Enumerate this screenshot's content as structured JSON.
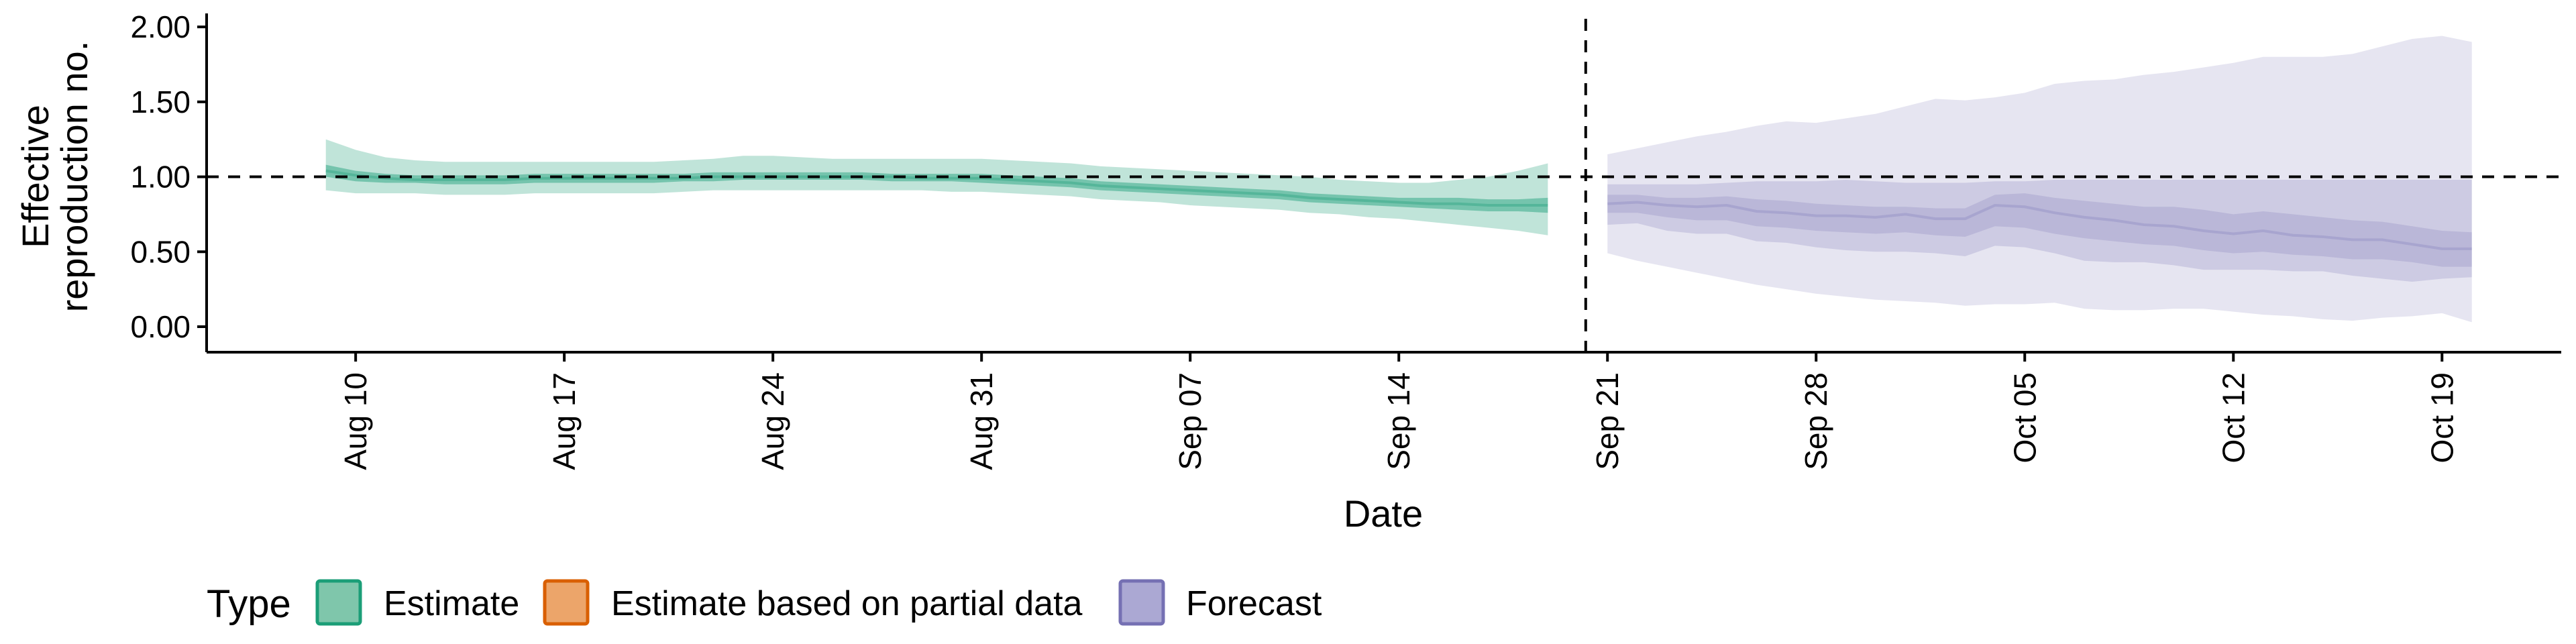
{
  "chart_data": {
    "type": "area",
    "title": "",
    "xlabel": "Date",
    "ylabel_lines": [
      "Effective",
      "reproduction no."
    ],
    "ylim": [
      0,
      2
    ],
    "y_ticks": [
      {
        "value": 0,
        "label": "0.00"
      },
      {
        "value": 0.5,
        "label": "0.50"
      },
      {
        "value": 1,
        "label": "1.00"
      },
      {
        "value": 1.5,
        "label": "1.50"
      },
      {
        "value": 2,
        "label": "2.00"
      }
    ],
    "x_ticks": [
      {
        "date": "2020-08-10",
        "label": "Aug 10"
      },
      {
        "date": "2020-08-17",
        "label": "Aug 17"
      },
      {
        "date": "2020-08-24",
        "label": "Aug 24"
      },
      {
        "date": "2020-08-31",
        "label": "Aug 31"
      },
      {
        "date": "2020-09-07",
        "label": "Sep 07"
      },
      {
        "date": "2020-09-14",
        "label": "Sep 14"
      },
      {
        "date": "2020-09-21",
        "label": "Sep 21"
      },
      {
        "date": "2020-09-28",
        "label": "Sep 28"
      },
      {
        "date": "2020-10-05",
        "label": "Oct 05"
      },
      {
        "date": "2020-10-12",
        "label": "Oct 12"
      },
      {
        "date": "2020-10-19",
        "label": "Oct 19"
      }
    ],
    "xlim": [
      "2020-08-05",
      "2020-10-23"
    ],
    "reference_line_y": 1.0,
    "forecast_divider_date": "2020-09-20",
    "grid": false,
    "legend": {
      "title": "Type",
      "position": "bottom-left",
      "items": [
        {
          "label": "Estimate",
          "fill": "#7fc6ab",
          "stroke": "#1b9e77"
        },
        {
          "label": "Estimate based on partial data",
          "fill": "#eca56a",
          "stroke": "#d95f02"
        },
        {
          "label": "Forecast",
          "fill": "#aba8d3",
          "stroke": "#7570b3"
        }
      ]
    },
    "series": [
      {
        "name": "Estimate",
        "color": "#1b9e77",
        "dates": [
          "2020-08-09",
          "2020-08-10",
          "2020-08-11",
          "2020-08-12",
          "2020-08-13",
          "2020-08-14",
          "2020-08-15",
          "2020-08-16",
          "2020-08-17",
          "2020-08-18",
          "2020-08-19",
          "2020-08-20",
          "2020-08-21",
          "2020-08-22",
          "2020-08-23",
          "2020-08-24",
          "2020-08-25",
          "2020-08-26",
          "2020-08-27",
          "2020-08-28",
          "2020-08-29",
          "2020-08-30",
          "2020-08-31",
          "2020-09-01",
          "2020-09-02",
          "2020-09-03",
          "2020-09-04",
          "2020-09-05",
          "2020-09-06",
          "2020-09-07",
          "2020-09-08",
          "2020-09-09",
          "2020-09-10",
          "2020-09-11",
          "2020-09-12",
          "2020-09-13",
          "2020-09-14",
          "2020-09-15",
          "2020-09-16",
          "2020-09-17",
          "2020-09-18",
          "2020-09-19"
        ],
        "median": [
          1.04,
          1.01,
          0.99,
          0.98,
          0.98,
          0.98,
          0.98,
          0.99,
          0.99,
          0.99,
          0.99,
          0.99,
          0.99,
          1.0,
          1.0,
          1.0,
          1.0,
          1.0,
          1.0,
          1.0,
          0.99,
          0.99,
          0.99,
          0.98,
          0.97,
          0.96,
          0.94,
          0.93,
          0.92,
          0.91,
          0.9,
          0.89,
          0.88,
          0.86,
          0.85,
          0.84,
          0.83,
          0.82,
          0.82,
          0.81,
          0.81,
          0.81
        ],
        "lower_50": [
          1.0,
          0.97,
          0.96,
          0.96,
          0.95,
          0.95,
          0.95,
          0.96,
          0.96,
          0.96,
          0.96,
          0.96,
          0.97,
          0.97,
          0.98,
          0.98,
          0.98,
          0.98,
          0.98,
          0.97,
          0.97,
          0.97,
          0.96,
          0.95,
          0.94,
          0.93,
          0.91,
          0.9,
          0.89,
          0.88,
          0.87,
          0.86,
          0.85,
          0.83,
          0.82,
          0.81,
          0.8,
          0.79,
          0.78,
          0.77,
          0.77,
          0.76
        ],
        "upper_50": [
          1.08,
          1.04,
          1.02,
          1.01,
          1.01,
          1.01,
          1.01,
          1.02,
          1.02,
          1.02,
          1.02,
          1.02,
          1.02,
          1.03,
          1.03,
          1.03,
          1.03,
          1.03,
          1.03,
          1.02,
          1.02,
          1.02,
          1.02,
          1.01,
          1.0,
          0.99,
          0.97,
          0.96,
          0.95,
          0.94,
          0.93,
          0.92,
          0.91,
          0.89,
          0.88,
          0.87,
          0.86,
          0.86,
          0.86,
          0.85,
          0.85,
          0.86
        ],
        "lower_90": [
          0.91,
          0.89,
          0.89,
          0.89,
          0.88,
          0.88,
          0.88,
          0.89,
          0.89,
          0.89,
          0.89,
          0.89,
          0.9,
          0.91,
          0.91,
          0.91,
          0.91,
          0.91,
          0.91,
          0.91,
          0.91,
          0.9,
          0.9,
          0.89,
          0.88,
          0.87,
          0.85,
          0.84,
          0.83,
          0.81,
          0.8,
          0.79,
          0.78,
          0.76,
          0.75,
          0.73,
          0.72,
          0.7,
          0.68,
          0.66,
          0.64,
          0.61
        ],
        "upper_90": [
          1.25,
          1.18,
          1.13,
          1.11,
          1.1,
          1.1,
          1.1,
          1.1,
          1.1,
          1.1,
          1.1,
          1.1,
          1.11,
          1.12,
          1.14,
          1.14,
          1.13,
          1.12,
          1.12,
          1.12,
          1.12,
          1.12,
          1.12,
          1.11,
          1.1,
          1.09,
          1.07,
          1.06,
          1.05,
          1.04,
          1.03,
          1.02,
          1.01,
          1.0,
          0.98,
          0.97,
          0.96,
          0.96,
          0.98,
          1.0,
          1.04,
          1.09
        ]
      },
      {
        "name": "Forecast",
        "color": "#7570b3",
        "dates": [
          "2020-09-21",
          "2020-09-22",
          "2020-09-23",
          "2020-09-24",
          "2020-09-25",
          "2020-09-26",
          "2020-09-27",
          "2020-09-28",
          "2020-09-29",
          "2020-09-30",
          "2020-10-01",
          "2020-10-02",
          "2020-10-03",
          "2020-10-04",
          "2020-10-05",
          "2020-10-06",
          "2020-10-07",
          "2020-10-08",
          "2020-10-09",
          "2020-10-10",
          "2020-10-11",
          "2020-10-12",
          "2020-10-13",
          "2020-10-14",
          "2020-10-15",
          "2020-10-16",
          "2020-10-17",
          "2020-10-18",
          "2020-10-19",
          "2020-10-20"
        ],
        "median": [
          0.82,
          0.83,
          0.81,
          0.8,
          0.81,
          0.77,
          0.76,
          0.74,
          0.74,
          0.73,
          0.75,
          0.72,
          0.72,
          0.81,
          0.8,
          0.76,
          0.73,
          0.71,
          0.68,
          0.67,
          0.64,
          0.62,
          0.64,
          0.61,
          0.6,
          0.58,
          0.58,
          0.55,
          0.52,
          0.52
        ],
        "lower_50": [
          0.76,
          0.76,
          0.73,
          0.71,
          0.71,
          0.67,
          0.66,
          0.64,
          0.63,
          0.62,
          0.63,
          0.61,
          0.6,
          0.67,
          0.66,
          0.62,
          0.59,
          0.57,
          0.55,
          0.54,
          0.51,
          0.49,
          0.5,
          0.48,
          0.47,
          0.45,
          0.45,
          0.43,
          0.4,
          0.4
        ],
        "upper_50": [
          0.88,
          0.88,
          0.86,
          0.86,
          0.87,
          0.85,
          0.84,
          0.82,
          0.81,
          0.8,
          0.8,
          0.79,
          0.79,
          0.88,
          0.89,
          0.86,
          0.84,
          0.82,
          0.8,
          0.8,
          0.78,
          0.75,
          0.77,
          0.75,
          0.73,
          0.71,
          0.7,
          0.67,
          0.64,
          0.63
        ],
        "lower_25q": [
          0.68,
          0.69,
          0.64,
          0.62,
          0.62,
          0.57,
          0.56,
          0.53,
          0.51,
          0.5,
          0.5,
          0.49,
          0.47,
          0.54,
          0.53,
          0.49,
          0.44,
          0.43,
          0.43,
          0.41,
          0.38,
          0.38,
          0.38,
          0.37,
          0.37,
          0.34,
          0.32,
          0.3,
          0.32,
          0.33
        ],
        "upper_25q": [
          0.95,
          0.95,
          0.95,
          0.95,
          0.96,
          0.97,
          0.97,
          0.97,
          0.98,
          0.97,
          0.96,
          0.96,
          0.96,
          0.97,
          0.97,
          0.98,
          0.98,
          0.98,
          0.98,
          0.98,
          0.98,
          0.98,
          0.98,
          0.98,
          0.98,
          0.98,
          0.98,
          0.98,
          0.98,
          0.98
        ],
        "lower_90": [
          0.49,
          0.44,
          0.4,
          0.36,
          0.32,
          0.28,
          0.25,
          0.22,
          0.2,
          0.18,
          0.17,
          0.16,
          0.14,
          0.15,
          0.15,
          0.16,
          0.12,
          0.11,
          0.11,
          0.12,
          0.12,
          0.1,
          0.08,
          0.07,
          0.05,
          0.04,
          0.06,
          0.07,
          0.09,
          0.03
        ],
        "upper_90": [
          1.15,
          1.19,
          1.23,
          1.27,
          1.3,
          1.34,
          1.37,
          1.36,
          1.39,
          1.42,
          1.47,
          1.52,
          1.51,
          1.53,
          1.56,
          1.62,
          1.64,
          1.65,
          1.68,
          1.7,
          1.73,
          1.76,
          1.8,
          1.8,
          1.8,
          1.82,
          1.87,
          1.92,
          1.94,
          1.9
        ]
      }
    ]
  }
}
